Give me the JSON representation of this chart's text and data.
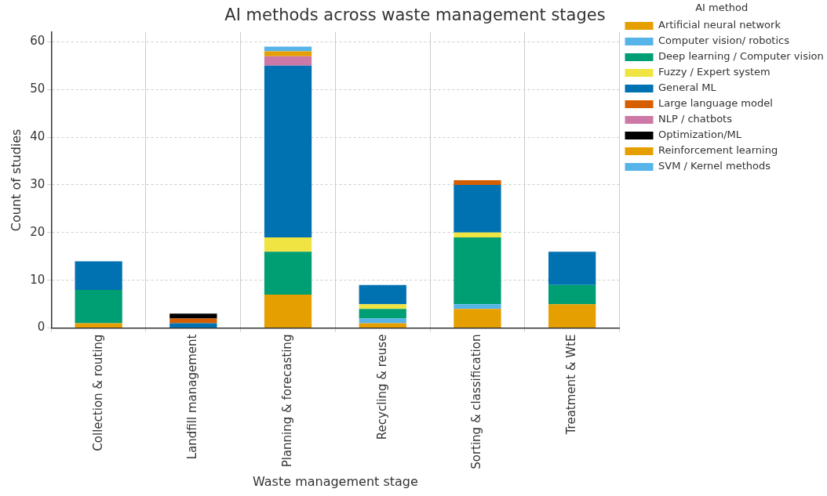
{
  "chart_data": {
    "type": "bar",
    "title": "AI methods across waste management stages",
    "xlabel": "Waste management stage",
    "ylabel": "Count of studies",
    "legend_title": "AI method",
    "categories": [
      "Collection & routing",
      "Landfill management",
      "Planning & forecasting",
      "Recycling & reuse",
      "Sorting & classification",
      "Treatment & WtE"
    ],
    "stacked": true,
    "ylim": [
      0,
      62
    ],
    "yticks": [
      0,
      10,
      20,
      30,
      40,
      50,
      60
    ],
    "grid": true,
    "legend": "right",
    "series": [
      {
        "name": "Artificial neural network",
        "color": "#e69f00",
        "values": [
          1,
          0,
          7,
          1,
          4,
          5
        ]
      },
      {
        "name": "Computer vision/ robotics",
        "color": "#56b4e9",
        "values": [
          0,
          0,
          0,
          1,
          1,
          0
        ]
      },
      {
        "name": "Deep learning / Computer vision",
        "color": "#009e73",
        "values": [
          7,
          0,
          9,
          2,
          14,
          4
        ]
      },
      {
        "name": "Fuzzy / Expert system",
        "color": "#f0e442",
        "values": [
          0,
          0,
          3,
          1,
          1,
          0
        ]
      },
      {
        "name": "General ML",
        "color": "#0072b2",
        "values": [
          6,
          1,
          36,
          4,
          10,
          7
        ]
      },
      {
        "name": "Large language model",
        "color": "#d55e00",
        "values": [
          0,
          1,
          0,
          0,
          1,
          0
        ]
      },
      {
        "name": "NLP / chatbots",
        "color": "#cc79a7",
        "values": [
          0,
          0,
          2,
          0,
          0,
          0
        ]
      },
      {
        "name": "Optimization/ML",
        "color": "#000000",
        "values": [
          0,
          1,
          0,
          0,
          0,
          0
        ]
      },
      {
        "name": "Reinforcement learning",
        "color": "#e69f00",
        "values": [
          0,
          0,
          1,
          0,
          0,
          0
        ]
      },
      {
        "name": "SVM / Kernel methods",
        "color": "#56b4e9",
        "values": [
          0,
          0,
          1,
          0,
          0,
          0
        ]
      }
    ]
  }
}
